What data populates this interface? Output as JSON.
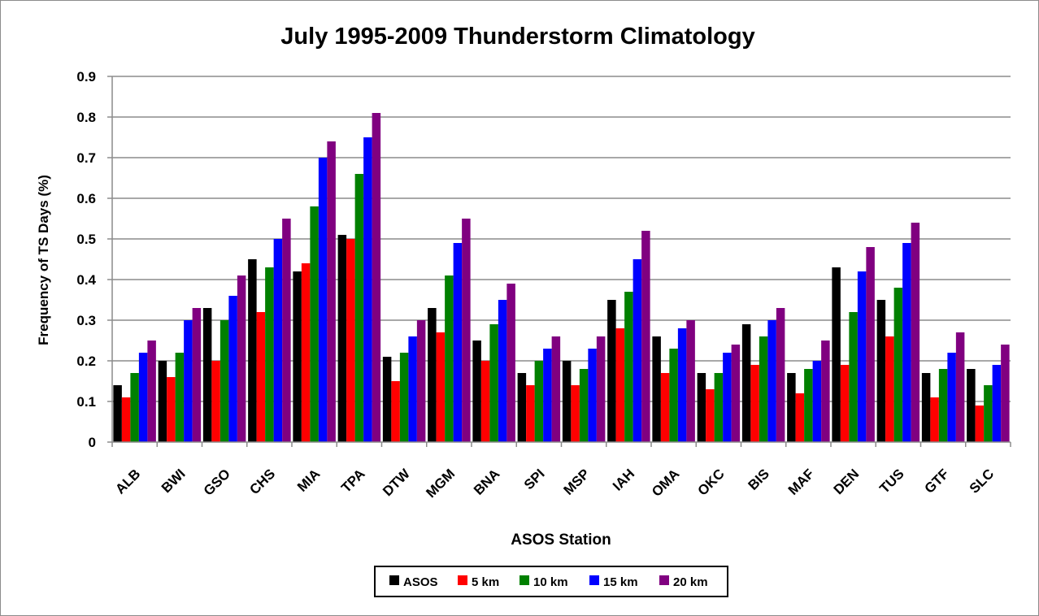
{
  "chart_data": {
    "type": "bar",
    "title": "July 1995-2009 Thunderstorm Climatology",
    "xlabel": "ASOS Station",
    "ylabel": "Frequency of TS Days (%)",
    "ylim": [
      0,
      0.9
    ],
    "yticks": [
      "0",
      "0.1",
      "0.2",
      "0.3",
      "0.4",
      "0.5",
      "0.6",
      "0.7",
      "0.8",
      "0.9"
    ],
    "grid": true,
    "legend_position": "bottom",
    "categories": [
      "ALB",
      "BWI",
      "GSO",
      "CHS",
      "MIA",
      "TPA",
      "DTW",
      "MGM",
      "BNA",
      "SPI",
      "MSP",
      "IAH",
      "OMA",
      "OKC",
      "BIS",
      "MAF",
      "DEN",
      "TUS",
      "GTF",
      "SLC"
    ],
    "series": [
      {
        "name": "ASOS",
        "color": "#000000",
        "values": [
          0.14,
          0.2,
          0.33,
          0.45,
          0.42,
          0.51,
          0.21,
          0.33,
          0.25,
          0.17,
          0.2,
          0.35,
          0.26,
          0.17,
          0.29,
          0.17,
          0.43,
          0.35,
          0.17,
          0.18
        ]
      },
      {
        "name": "5 km",
        "color": "#ff0000",
        "values": [
          0.11,
          0.16,
          0.2,
          0.32,
          0.44,
          0.5,
          0.15,
          0.27,
          0.2,
          0.14,
          0.14,
          0.28,
          0.17,
          0.13,
          0.19,
          0.12,
          0.19,
          0.26,
          0.11,
          0.09
        ]
      },
      {
        "name": "10 km",
        "color": "#008000",
        "values": [
          0.17,
          0.22,
          0.3,
          0.43,
          0.58,
          0.66,
          0.22,
          0.41,
          0.29,
          0.2,
          0.18,
          0.37,
          0.23,
          0.17,
          0.26,
          0.18,
          0.32,
          0.38,
          0.18,
          0.14
        ]
      },
      {
        "name": "15 km",
        "color": "#0000ff",
        "values": [
          0.22,
          0.3,
          0.36,
          0.5,
          0.7,
          0.75,
          0.26,
          0.49,
          0.35,
          0.23,
          0.23,
          0.45,
          0.28,
          0.22,
          0.3,
          0.2,
          0.42,
          0.49,
          0.22,
          0.19
        ]
      },
      {
        "name": "20 km",
        "color": "#800080",
        "values": [
          0.25,
          0.33,
          0.41,
          0.55,
          0.74,
          0.81,
          0.3,
          0.55,
          0.39,
          0.26,
          0.26,
          0.52,
          0.3,
          0.24,
          0.33,
          0.25,
          0.48,
          0.54,
          0.27,
          0.24
        ]
      }
    ]
  }
}
